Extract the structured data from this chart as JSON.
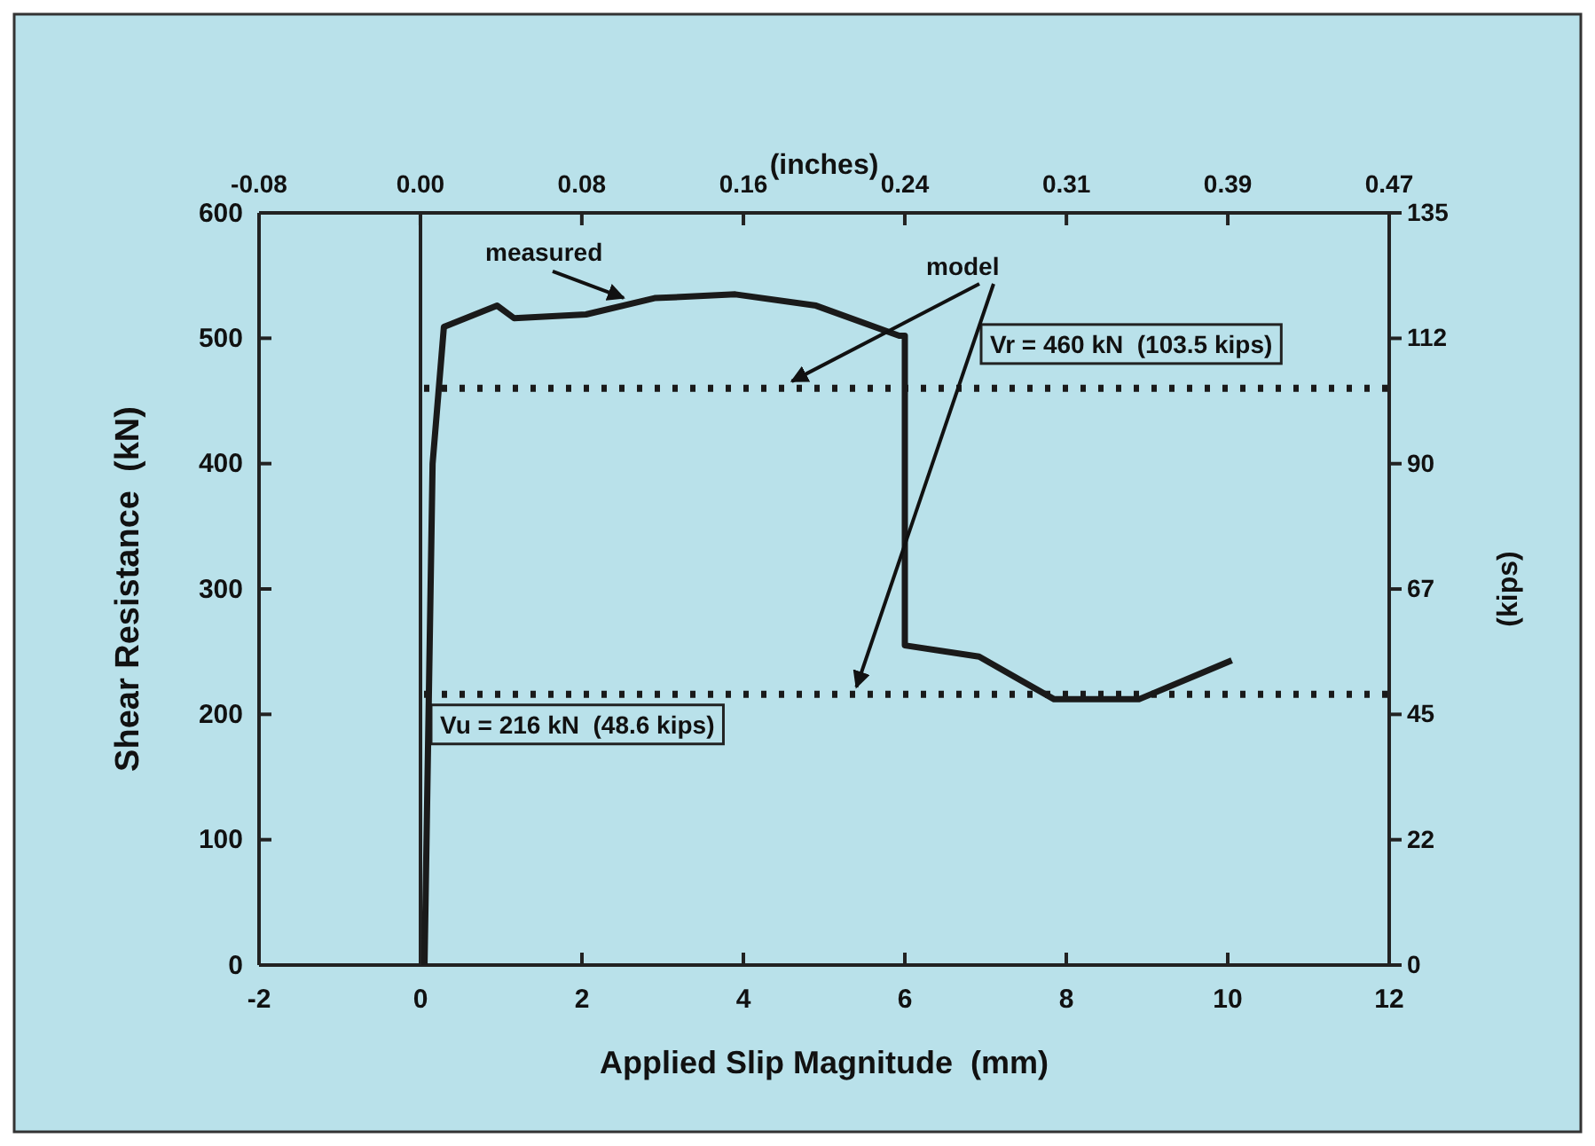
{
  "chart_data": {
    "type": "line",
    "xlabel": "Applied Slip Magnitude  (mm)",
    "ylabel": "Shear Resistance  (kN)",
    "x2label": "(inches)",
    "y2label": "(kips)",
    "series": [
      {
        "color": "#1a1a1a",
        "x": [
          0.05,
          0.15,
          0.29,
          0.95,
          1.16,
          2.05,
          2.9,
          3.9,
          4.9,
          5.93,
          6.0,
          6.0,
          6.92,
          7.85,
          8.9,
          10.05
        ],
        "values": [
          0,
          400,
          509,
          526,
          516,
          519,
          532,
          535,
          526,
          502,
          502,
          255,
          246,
          212,
          212,
          243
        ]
      }
    ],
    "xlim": [
      -2,
      12
    ],
    "xticks": [
      -2,
      0,
      2,
      4,
      6,
      8,
      10,
      12
    ],
    "ylim": [
      0,
      600
    ],
    "yticks": [
      0,
      100,
      200,
      300,
      400,
      500,
      600
    ],
    "x2lim": [
      -0.0787,
      0.4724
    ],
    "x2ticks": [
      {
        "value": -0.0787,
        "label": "-0.08"
      },
      {
        "value": 0,
        "label": "0.00"
      },
      {
        "value": 0.0787,
        "label": "0.08"
      },
      {
        "value": 0.1575,
        "label": "0.16"
      },
      {
        "value": 0.2362,
        "label": "0.24"
      },
      {
        "value": 0.315,
        "label": "0.31"
      },
      {
        "value": 0.3937,
        "label": "0.39"
      },
      {
        "value": 0.4724,
        "label": "0.47"
      }
    ],
    "y2lim": [
      0,
      134.9
    ],
    "y2ticks": [
      0,
      {
        "value": 22.48,
        "label": "22"
      },
      {
        "value": 44.96,
        "label": "45"
      },
      {
        "value": 67.44,
        "label": "67"
      },
      {
        "value": 89.92,
        "label": "90"
      },
      {
        "value": 112.4,
        "label": "112"
      },
      {
        "value": 134.9,
        "label": "135"
      }
    ],
    "ref_lines": [
      {
        "axis": "x",
        "value": 0,
        "color": "#222222",
        "line_style": "solid"
      },
      {
        "axis": "y",
        "value": 460,
        "label": "Vr = 460 kN  (103.5 kips)",
        "color": "#1a1a1a",
        "line_style": "dotted"
      },
      {
        "axis": "y",
        "value": 216,
        "label": "Vu = 216 kN  (48.6 kips)",
        "color": "#1a1a1a",
        "line_style": "dotted"
      }
    ],
    "annotations": [
      {
        "text": "measured",
        "x": 3.0,
        "y": 528
      },
      {
        "text": "model",
        "x": 4.6,
        "y": 460
      }
    ],
    "marker": "none",
    "line_style": "solid",
    "grid": false
  }
}
